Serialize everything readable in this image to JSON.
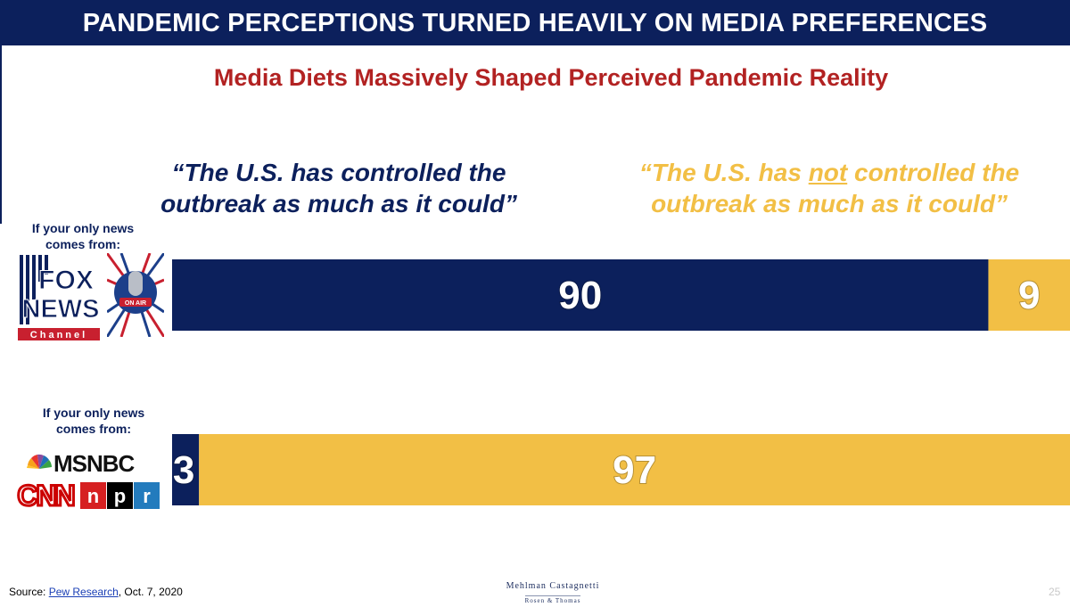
{
  "title": "PANDEMIC PERCEPTIONS TURNED HEAVILY ON MEDIA PREFERENCES",
  "subtitle": "Media Diets Massively Shaped Perceived Pandemic Reality",
  "quote_left": "“The U.S. has controlled the outbreak as much as it could”",
  "quote_right": {
    "pre": "“The U.S. has ",
    "emph": "not",
    "post": " controlled the outbreak as much as it could”"
  },
  "row_label": "If your only news comes from:",
  "logos": {
    "fox_line1": "FOX",
    "fox_line2": "NEWS",
    "fox_line3": "Channel",
    "on_air": "ON AIR",
    "msnbc": "MSNBC",
    "cnn": "CNN",
    "npr": [
      "n",
      "p",
      "r"
    ]
  },
  "colors": {
    "controlled": "#0c205c",
    "not_controlled": "#f2bf45",
    "title_bg": "#0c205c",
    "subtitle": "#b22222"
  },
  "chart_data": {
    "type": "bar",
    "orientation": "horizontal-stacked",
    "categories": [
      "Fox News / talk radio",
      "MSNBC / CNN / NPR"
    ],
    "series": [
      {
        "name": "“The U.S. has controlled the outbreak as much as it could”",
        "values": [
          90,
          3
        ]
      },
      {
        "name": "“The U.S. has not controlled the outbreak as much as it could”",
        "values": [
          9,
          97
        ]
      }
    ],
    "xlim": [
      0,
      100
    ]
  },
  "source": {
    "label": "Source: ",
    "link": "Pew Research",
    "date": ", Oct. 7, 2020"
  },
  "firm": {
    "line1": "Mehlman Castagnetti",
    "line2": "Rosen & Thomas"
  },
  "page_number": "25"
}
